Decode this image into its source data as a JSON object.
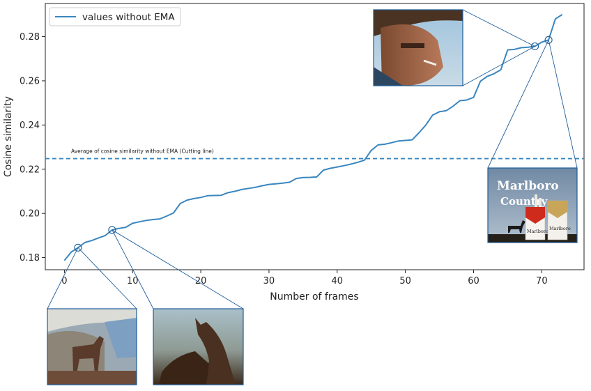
{
  "chart_data": {
    "type": "line",
    "title": "",
    "xlabel": "Number of frames",
    "ylabel": "Cosine similarity",
    "xlim": [
      -2.8,
      76.2
    ],
    "ylim": [
      0.1745,
      0.295
    ],
    "xticks": [
      0,
      10,
      20,
      30,
      40,
      50,
      60,
      70
    ],
    "yticks": [
      0.18,
      0.2,
      0.22,
      0.24,
      0.26,
      0.28
    ],
    "ytick_labels": [
      "0.18",
      "0.20",
      "0.22",
      "0.24",
      "0.26",
      "0.28"
    ],
    "grid": false,
    "legend": {
      "position": "top-left",
      "entries": [
        "values without EMA"
      ]
    },
    "series": [
      {
        "name": "values without EMA",
        "color": "#3a86bf",
        "x": [
          0,
          1,
          2,
          3,
          4,
          5,
          6,
          7,
          8,
          9,
          10,
          11,
          12,
          13,
          14,
          15,
          16,
          17,
          18,
          19,
          20,
          21,
          22,
          23,
          24,
          25,
          26,
          27,
          28,
          29,
          30,
          31,
          32,
          33,
          34,
          35,
          36,
          37,
          38,
          39,
          40,
          41,
          42,
          43,
          44,
          45,
          46,
          47,
          48,
          49,
          50,
          51,
          52,
          53,
          54,
          55,
          56,
          57,
          58,
          59,
          60,
          61,
          62,
          63,
          64,
          65,
          66,
          67,
          68,
          69,
          70,
          71,
          72,
          73
        ],
        "y": [
          0.1787,
          0.1825,
          0.1845,
          0.1868,
          0.1877,
          0.1889,
          0.19,
          0.1925,
          0.1932,
          0.1937,
          0.1955,
          0.1962,
          0.1968,
          0.1972,
          0.1975,
          0.1988,
          0.2002,
          0.2045,
          0.206,
          0.2067,
          0.2072,
          0.208,
          0.2081,
          0.2082,
          0.2094,
          0.21,
          0.2108,
          0.2113,
          0.2118,
          0.2125,
          0.2131,
          0.2134,
          0.2137,
          0.2141,
          0.2158,
          0.2162,
          0.2163,
          0.2165,
          0.2196,
          0.2204,
          0.221,
          0.2216,
          0.2223,
          0.2231,
          0.2241,
          0.2285,
          0.231,
          0.2313,
          0.232,
          0.2328,
          0.233,
          0.2333,
          0.2365,
          0.24,
          0.2445,
          0.246,
          0.2465,
          0.2485,
          0.251,
          0.2513,
          0.2525,
          0.2598,
          0.262,
          0.2632,
          0.265,
          0.274,
          0.2742,
          0.275,
          0.2752,
          0.2756,
          0.2775,
          0.2785,
          0.288,
          0.29
        ]
      }
    ],
    "reference_line": {
      "y": 0.2248,
      "style": "dashed",
      "color": "#3a86bf",
      "label": "Average of cosine similarity without EMA (Cutting line)"
    },
    "highlighted_points": [
      {
        "x": 2,
        "y": 0.1845,
        "thumbnail": "cowboy-face-horse-overlay-frame"
      },
      {
        "x": 7,
        "y": 0.1925,
        "thumbnail": "horse-head-frame"
      },
      {
        "x": 69,
        "y": 0.2756,
        "thumbnail": "cowboy-with-cigarette-frame"
      },
      {
        "x": 71,
        "y": 0.2785,
        "thumbnail": "marlboro-country-pack-frame"
      }
    ]
  },
  "thumbnails": {
    "cowboy_cigarette": {
      "caption": ""
    },
    "marlboro": {
      "line1": "Marlboro",
      "line2": "Country",
      "pack_text": "Marlboro"
    },
    "cowboy_horse": {
      "caption": ""
    },
    "horse_head": {
      "caption": ""
    }
  }
}
